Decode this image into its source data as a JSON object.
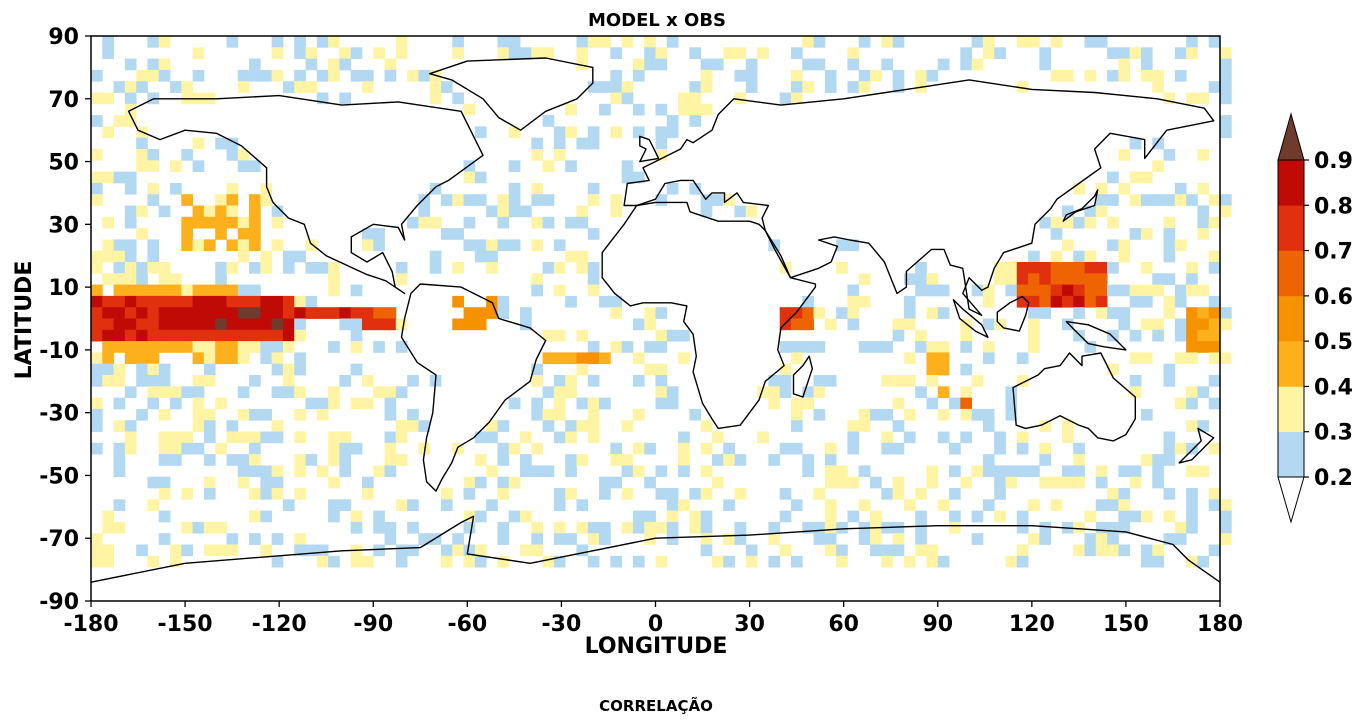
{
  "chart_data": {
    "type": "heatmap",
    "title": "MODEL x OBS",
    "xlabel": "LONGITUDE",
    "ylabel": "LATITUDE",
    "footer": "CORRELAÇÃO",
    "xlim": [
      -180,
      180
    ],
    "ylim": [
      -90,
      90
    ],
    "x_ticks": [
      "-180",
      "-150",
      "-120",
      "-90",
      "-60",
      "-30",
      "0",
      "30",
      "60",
      "90",
      "120",
      "150",
      "180"
    ],
    "y_ticks": [
      "90",
      "70",
      "50",
      "30",
      "10",
      "-10",
      "-30",
      "-50",
      "-70",
      "-90"
    ],
    "colorbar": {
      "levels": [
        "0.2",
        "0.3",
        "0.4",
        "0.5",
        "0.6",
        "0.7",
        "0.8",
        "0.9"
      ],
      "colors": [
        "#b3d9f2",
        "#fff4a3",
        "#fbb01c",
        "#f59200",
        "#ee6302",
        "#e0300e",
        "#c00a06"
      ],
      "over_color": "#6e3b2c",
      "under_color": "#ffffff"
    },
    "regions": [
      {
        "lon": [
          -180,
          -115
        ],
        "lat": [
          -8,
          6
        ],
        "value": 0.8
      },
      {
        "lon": [
          -160,
          -120
        ],
        "lat": [
          -4,
          3
        ],
        "value": 0.9
      },
      {
        "lon": [
          -115,
          -95
        ],
        "lat": [
          -1,
          5
        ],
        "value": 0.8
      },
      {
        "lon": [
          -95,
          -82
        ],
        "lat": [
          -4,
          2
        ],
        "value": 0.75
      },
      {
        "lon": [
          -180,
          -130
        ],
        "lat": [
          -16,
          -8
        ],
        "value": 0.45
      },
      {
        "lon": [
          -180,
          -135
        ],
        "lat": [
          6,
          12
        ],
        "value": 0.45
      },
      {
        "lon": [
          -150,
          -125
        ],
        "lat": [
          20,
          40
        ],
        "value": 0.45
      },
      {
        "lon": [
          -65,
          -50
        ],
        "lat": [
          -5,
          8
        ],
        "value": 0.55
      },
      {
        "lon": [
          -35,
          -15
        ],
        "lat": [
          -15,
          -10
        ],
        "value": 0.5
      },
      {
        "lon": [
          -60,
          -30
        ],
        "lat": [
          -70,
          -67
        ],
        "value": 0.45
      },
      {
        "lon": [
          40,
          52
        ],
        "lat": [
          -5,
          5
        ],
        "value": 0.75
      },
      {
        "lon": [
          115,
          145
        ],
        "lat": [
          5,
          18
        ],
        "value": 0.7
      },
      {
        "lon": [
          125,
          138
        ],
        "lat": [
          5,
          12
        ],
        "value": 0.8
      },
      {
        "lon": [
          168,
          180
        ],
        "lat": [
          -10,
          3
        ],
        "value": 0.55
      },
      {
        "lon": [
          98,
          102
        ],
        "lat": [
          -29,
          -26
        ],
        "value": 0.75
      },
      {
        "lon": [
          85,
          95
        ],
        "lat": [
          -25,
          -12
        ],
        "value": 0.45
      }
    ],
    "coastline_outlines": [
      {
        "name": "North America",
        "points": [
          [
            -168,
            66
          ],
          [
            -160,
            70
          ],
          [
            -140,
            70
          ],
          [
            -120,
            71
          ],
          [
            -100,
            68
          ],
          [
            -82,
            69
          ],
          [
            -62,
            66
          ],
          [
            -55,
            52
          ],
          [
            -66,
            44
          ],
          [
            -70,
            42
          ],
          [
            -76,
            36
          ],
          [
            -81,
            30
          ],
          [
            -80,
            25
          ],
          [
            -82,
            29
          ],
          [
            -90,
            30
          ],
          [
            -97,
            26
          ],
          [
            -97,
            21
          ],
          [
            -92,
            18
          ],
          [
            -87,
            21
          ],
          [
            -84,
            15
          ],
          [
            -83,
            10
          ],
          [
            -80,
            8
          ],
          [
            -86,
            12
          ],
          [
            -92,
            14
          ],
          [
            -105,
            20
          ],
          [
            -110,
            24
          ],
          [
            -112,
            30
          ],
          [
            -117,
            32
          ],
          [
            -122,
            37
          ],
          [
            -124,
            42
          ],
          [
            -124,
            48
          ],
          [
            -132,
            55
          ],
          [
            -140,
            59
          ],
          [
            -150,
            60
          ],
          [
            -158,
            57
          ],
          [
            -165,
            60
          ]
        ]
      },
      {
        "name": "South America",
        "points": [
          [
            -78,
            8
          ],
          [
            -75,
            11
          ],
          [
            -62,
            10
          ],
          [
            -52,
            5
          ],
          [
            -50,
            0
          ],
          [
            -40,
            -3
          ],
          [
            -35,
            -7
          ],
          [
            -38,
            -13
          ],
          [
            -40,
            -20
          ],
          [
            -48,
            -26
          ],
          [
            -53,
            -33
          ],
          [
            -58,
            -38
          ],
          [
            -63,
            -41
          ],
          [
            -65,
            -46
          ],
          [
            -68,
            -51
          ],
          [
            -70,
            -55
          ],
          [
            -73,
            -52
          ],
          [
            -74,
            -45
          ],
          [
            -73,
            -38
          ],
          [
            -71,
            -30
          ],
          [
            -70,
            -18
          ],
          [
            -76,
            -14
          ],
          [
            -81,
            -6
          ],
          [
            -80,
            0
          ]
        ]
      },
      {
        "name": "Greenland",
        "points": [
          [
            -72,
            78
          ],
          [
            -60,
            82
          ],
          [
            -35,
            83
          ],
          [
            -20,
            80
          ],
          [
            -20,
            75
          ],
          [
            -25,
            70
          ],
          [
            -35,
            66
          ],
          [
            -43,
            60
          ],
          [
            -50,
            64
          ],
          [
            -55,
            70
          ],
          [
            -65,
            76
          ]
        ]
      },
      {
        "name": "Eurasia",
        "points": [
          [
            -10,
            36
          ],
          [
            -9,
            43
          ],
          [
            -2,
            44
          ],
          [
            -4,
            48
          ],
          [
            2,
            51
          ],
          [
            8,
            54
          ],
          [
            10,
            57
          ],
          [
            12,
            56
          ],
          [
            18,
            60
          ],
          [
            20,
            65
          ],
          [
            25,
            70
          ],
          [
            40,
            68
          ],
          [
            60,
            70
          ],
          [
            80,
            73
          ],
          [
            100,
            76
          ],
          [
            120,
            73
          ],
          [
            140,
            72
          ],
          [
            160,
            70
          ],
          [
            175,
            67
          ],
          [
            178,
            63
          ],
          [
            163,
            60
          ],
          [
            156,
            51
          ],
          [
            156,
            57
          ],
          [
            145,
            59
          ],
          [
            140,
            54
          ],
          [
            142,
            48
          ],
          [
            135,
            43
          ],
          [
            128,
            38
          ],
          [
            126,
            35
          ],
          [
            121,
            30
          ],
          [
            120,
            24
          ],
          [
            111,
            21
          ],
          [
            108,
            16
          ],
          [
            106,
            10
          ],
          [
            104,
            9
          ],
          [
            100,
            13
          ],
          [
            98,
            8
          ],
          [
            104,
            1
          ],
          [
            100,
            3
          ],
          [
            98,
            16
          ],
          [
            94,
            17
          ],
          [
            92,
            22
          ],
          [
            88,
            22
          ],
          [
            80,
            15
          ],
          [
            80,
            10
          ],
          [
            77,
            8
          ],
          [
            73,
            18
          ],
          [
            68,
            24
          ],
          [
            62,
            25
          ],
          [
            57,
            26
          ],
          [
            52,
            25
          ],
          [
            58,
            23
          ],
          [
            56,
            18
          ],
          [
            52,
            16
          ],
          [
            43,
            13
          ],
          [
            40,
            20
          ],
          [
            35,
            28
          ],
          [
            34,
            32
          ],
          [
            36,
            36
          ],
          [
            28,
            37
          ],
          [
            26,
            40
          ],
          [
            22,
            37
          ],
          [
            22,
            40
          ],
          [
            18,
            40
          ],
          [
            16,
            38
          ],
          [
            12,
            44
          ],
          [
            8,
            44
          ],
          [
            3,
            43
          ],
          [
            0,
            38
          ],
          [
            -6,
            36
          ]
        ]
      },
      {
        "name": "Africa",
        "points": [
          [
            -17,
            21
          ],
          [
            -10,
            30
          ],
          [
            -6,
            36
          ],
          [
            0,
            37
          ],
          [
            10,
            37
          ],
          [
            11,
            34
          ],
          [
            20,
            31
          ],
          [
            30,
            31
          ],
          [
            33,
            30
          ],
          [
            35,
            28
          ],
          [
            38,
            22
          ],
          [
            43,
            13
          ],
          [
            51,
            11
          ],
          [
            51,
            10
          ],
          [
            45,
            2
          ],
          [
            40,
            -3
          ],
          [
            39,
            -10
          ],
          [
            41,
            -15
          ],
          [
            35,
            -20
          ],
          [
            33,
            -26
          ],
          [
            27,
            -34
          ],
          [
            20,
            -35
          ],
          [
            18,
            -32
          ],
          [
            15,
            -27
          ],
          [
            12,
            -17
          ],
          [
            13,
            -12
          ],
          [
            12,
            -5
          ],
          [
            9,
            -1
          ],
          [
            10,
            4
          ],
          [
            5,
            5
          ],
          [
            -4,
            5
          ],
          [
            -8,
            4
          ],
          [
            -13,
            8
          ],
          [
            -17,
            13
          ]
        ]
      },
      {
        "name": "Madagascar",
        "points": [
          [
            49,
            -12
          ],
          [
            50,
            -16
          ],
          [
            47,
            -25
          ],
          [
            44,
            -24
          ],
          [
            44,
            -18
          ],
          [
            47,
            -15
          ]
        ]
      },
      {
        "name": "Australia",
        "points": [
          [
            114,
            -22
          ],
          [
            115,
            -34
          ],
          [
            118,
            -35
          ],
          [
            123,
            -34
          ],
          [
            129,
            -31
          ],
          [
            135,
            -34
          ],
          [
            138,
            -35
          ],
          [
            141,
            -38
          ],
          [
            146,
            -39
          ],
          [
            150,
            -37
          ],
          [
            153,
            -32
          ],
          [
            153,
            -25
          ],
          [
            146,
            -19
          ],
          [
            142,
            -11
          ],
          [
            136,
            -12
          ],
          [
            136,
            -15
          ],
          [
            132,
            -11
          ],
          [
            129,
            -15
          ],
          [
            124,
            -16
          ],
          [
            122,
            -18
          ]
        ]
      },
      {
        "name": "Antarctica",
        "points": [
          [
            -180,
            -84
          ],
          [
            -150,
            -78
          ],
          [
            -100,
            -74
          ],
          [
            -75,
            -73
          ],
          [
            -62,
            -65
          ],
          [
            -58,
            -63
          ],
          [
            -60,
            -75
          ],
          [
            -40,
            -78
          ],
          [
            -20,
            -74
          ],
          [
            0,
            -70
          ],
          [
            30,
            -69
          ],
          [
            60,
            -67
          ],
          [
            90,
            -66
          ],
          [
            120,
            -66
          ],
          [
            150,
            -68
          ],
          [
            165,
            -72
          ],
          [
            170,
            -77
          ],
          [
            180,
            -84
          ]
        ]
      },
      {
        "name": "Borneo",
        "points": [
          [
            109,
            2
          ],
          [
            113,
            5
          ],
          [
            117,
            7
          ],
          [
            119,
            5
          ],
          [
            118,
            1
          ],
          [
            116,
            -4
          ],
          [
            111,
            -3
          ],
          [
            109,
            -1
          ]
        ]
      },
      {
        "name": "Sumatra",
        "points": [
          [
            95,
            6
          ],
          [
            98,
            3
          ],
          [
            104,
            -2
          ],
          [
            106,
            -6
          ],
          [
            102,
            -4
          ],
          [
            97,
            0
          ]
        ]
      },
      {
        "name": "New Guinea",
        "points": [
          [
            131,
            -1
          ],
          [
            138,
            -2
          ],
          [
            145,
            -5
          ],
          [
            150,
            -10
          ],
          [
            143,
            -9
          ],
          [
            138,
            -8
          ],
          [
            134,
            -4
          ]
        ]
      },
      {
        "name": "Japan",
        "points": [
          [
            130,
            31
          ],
          [
            134,
            34
          ],
          [
            140,
            36
          ],
          [
            141,
            41
          ],
          [
            140,
            39
          ],
          [
            136,
            35
          ],
          [
            131,
            33
          ]
        ]
      },
      {
        "name": "Great Britain",
        "points": [
          [
            -5,
            50
          ],
          [
            1,
            51
          ],
          [
            0,
            53
          ],
          [
            -2,
            57
          ],
          [
            -5,
            58
          ],
          [
            -5,
            55
          ],
          [
            -3,
            54
          ],
          [
            -4,
            52
          ]
        ]
      },
      {
        "name": "New Zealand",
        "points": [
          [
            173,
            -35
          ],
          [
            178,
            -38
          ],
          [
            175,
            -41
          ],
          [
            171,
            -45
          ],
          [
            167,
            -46
          ],
          [
            172,
            -41
          ],
          [
            174,
            -39
          ]
        ]
      }
    ]
  }
}
